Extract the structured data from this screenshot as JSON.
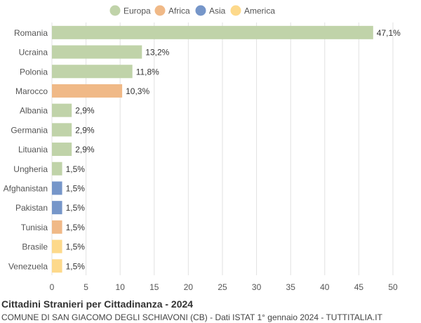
{
  "chart_data": {
    "type": "bar",
    "orientation": "horizontal",
    "title": "Cittadini Stranieri per Cittadinanza - 2024",
    "subtitle": "COMUNE DI SAN GIACOMO DEGLI SCHIAVONI (CB) - Dati ISTAT 1° gennaio 2024 - TUTTITALIA.IT",
    "xlim": [
      0,
      50
    ],
    "xticks": [
      0,
      5,
      10,
      15,
      20,
      25,
      30,
      35,
      40,
      45,
      50
    ],
    "grid": true,
    "legend_position": "top-center",
    "legend": [
      {
        "name": "Europa",
        "color": "#c0d3a9"
      },
      {
        "name": "Africa",
        "color": "#f0b987"
      },
      {
        "name": "Asia",
        "color": "#7696c9"
      },
      {
        "name": "America",
        "color": "#fdd98b"
      }
    ],
    "bars": [
      {
        "category": "Romania",
        "value": 47.1,
        "label": "47,1%",
        "group": "Europa"
      },
      {
        "category": "Ucraina",
        "value": 13.2,
        "label": "13,2%",
        "group": "Europa"
      },
      {
        "category": "Polonia",
        "value": 11.8,
        "label": "11,8%",
        "group": "Europa"
      },
      {
        "category": "Marocco",
        "value": 10.3,
        "label": "10,3%",
        "group": "Africa"
      },
      {
        "category": "Albania",
        "value": 2.9,
        "label": "2,9%",
        "group": "Europa"
      },
      {
        "category": "Germania",
        "value": 2.9,
        "label": "2,9%",
        "group": "Europa"
      },
      {
        "category": "Lituania",
        "value": 2.9,
        "label": "2,9%",
        "group": "Europa"
      },
      {
        "category": "Ungheria",
        "value": 1.5,
        "label": "1,5%",
        "group": "Europa"
      },
      {
        "category": "Afghanistan",
        "value": 1.5,
        "label": "1,5%",
        "group": "Asia"
      },
      {
        "category": "Pakistan",
        "value": 1.5,
        "label": "1,5%",
        "group": "Asia"
      },
      {
        "category": "Tunisia",
        "value": 1.5,
        "label": "1,5%",
        "group": "Africa"
      },
      {
        "category": "Brasile",
        "value": 1.5,
        "label": "1,5%",
        "group": "America"
      },
      {
        "category": "Venezuela",
        "value": 1.5,
        "label": "1,5%",
        "group": "America"
      }
    ]
  }
}
